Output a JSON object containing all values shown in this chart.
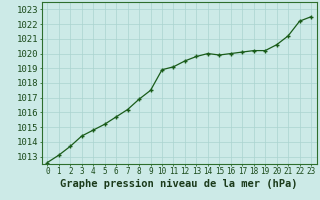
{
  "x": [
    0,
    1,
    2,
    3,
    4,
    5,
    6,
    7,
    8,
    9,
    10,
    11,
    12,
    13,
    14,
    15,
    16,
    17,
    18,
    19,
    20,
    21,
    22,
    23
  ],
  "y": [
    1012.6,
    1013.1,
    1013.7,
    1014.4,
    1014.8,
    1015.2,
    1015.7,
    1016.2,
    1016.9,
    1017.5,
    1018.9,
    1019.1,
    1019.5,
    1019.8,
    1020.0,
    1019.9,
    1020.0,
    1020.1,
    1020.2,
    1020.2,
    1020.6,
    1021.2,
    1022.2,
    1022.5
  ],
  "ylim": [
    1012.5,
    1023.5
  ],
  "xlim": [
    -0.5,
    23.5
  ],
  "yticks": [
    1013,
    1014,
    1015,
    1016,
    1017,
    1018,
    1019,
    1020,
    1021,
    1022,
    1023
  ],
  "xticks": [
    0,
    1,
    2,
    3,
    4,
    5,
    6,
    7,
    8,
    9,
    10,
    11,
    12,
    13,
    14,
    15,
    16,
    17,
    18,
    19,
    20,
    21,
    22,
    23
  ],
  "line_color": "#1a5c1a",
  "marker": "+",
  "marker_size": 3.5,
  "line_width": 0.9,
  "background_color": "#cceae7",
  "grid_color": "#aad4d0",
  "xlabel": "Graphe pression niveau de la mer (hPa)",
  "xlabel_fontsize": 7.5,
  "ytick_fontsize": 6.5,
  "xtick_fontsize": 5.5,
  "border_color": "#2d6e2d"
}
